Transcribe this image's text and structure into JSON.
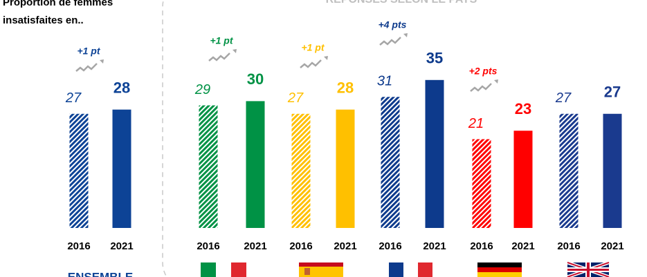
{
  "chart_data": {
    "type": "bar",
    "title_lines": [
      "Proportion de femmes",
      "insatisfaites en.."
    ],
    "subtitle": "RÉPONSES SELON LE PAYS",
    "categories": [
      "2016",
      "2021"
    ],
    "groups": [
      {
        "label": "ENSEMBLE",
        "color": "#0d4396",
        "values": [
          27,
          28
        ],
        "change": "+1 pt"
      },
      {
        "color": "#009245",
        "values": [
          29,
          30
        ],
        "change": "+1 pt"
      },
      {
        "color": "#ffc000",
        "values": [
          27,
          28
        ],
        "change": "+1 pt"
      },
      {
        "color": "#0d3a8c",
        "values": [
          31,
          35
        ],
        "change": "+4 pts"
      },
      {
        "color": "#ff0000",
        "values": [
          21,
          23
        ],
        "change": "+2 pts"
      },
      {
        "color": "#1a3a8e",
        "values": [
          27,
          27
        ]
      }
    ]
  }
}
